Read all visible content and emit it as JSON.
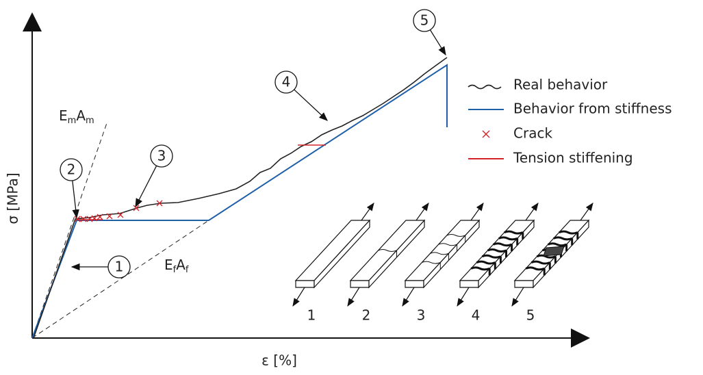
{
  "axes": {
    "y_label": "σ [MPa]",
    "x_label": "ε [%]"
  },
  "stiffness_labels": {
    "matrix": [
      "E",
      "m",
      "A",
      "m"
    ],
    "fiber": [
      "E",
      "f",
      "A",
      "f"
    ]
  },
  "stages": [
    "1",
    "2",
    "3",
    "4",
    "5"
  ],
  "legend": [
    "Real behavior",
    "Behavior from stiffness",
    "Crack",
    "Tension stiffening"
  ],
  "specimens": [
    "1",
    "2",
    "3",
    "4",
    "5"
  ]
}
